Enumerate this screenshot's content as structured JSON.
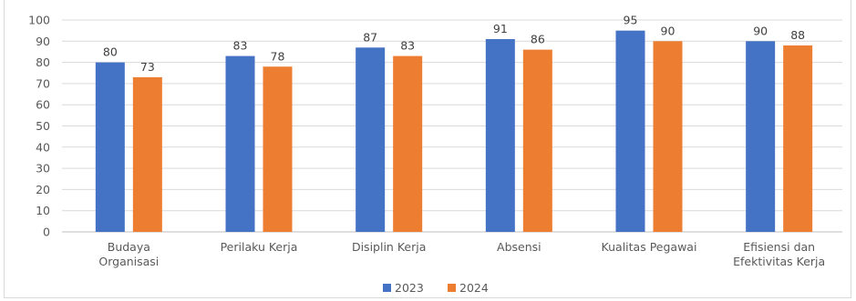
{
  "chart_data": {
    "type": "bar",
    "title": "",
    "xlabel": "",
    "ylabel": "",
    "ylim": [
      0,
      100
    ],
    "yticks": [
      0,
      10,
      20,
      30,
      40,
      50,
      60,
      70,
      80,
      90,
      100
    ],
    "grid": true,
    "legend_position": "bottom",
    "categories": [
      [
        "Budaya",
        "Organisasi"
      ],
      [
        "Perilaku Kerja"
      ],
      [
        "Disiplin Kerja"
      ],
      [
        "Absensi"
      ],
      [
        "Kualitas Pegawai"
      ],
      [
        "Efisiensi dan",
        "Efektivitas Kerja"
      ]
    ],
    "series": [
      {
        "name": "2023",
        "color": "#4472c4",
        "values": [
          80,
          83,
          87,
          91,
          95,
          90
        ]
      },
      {
        "name": "2024",
        "color": "#ed7d31",
        "values": [
          73,
          78,
          83,
          86,
          90,
          88
        ]
      }
    ]
  }
}
